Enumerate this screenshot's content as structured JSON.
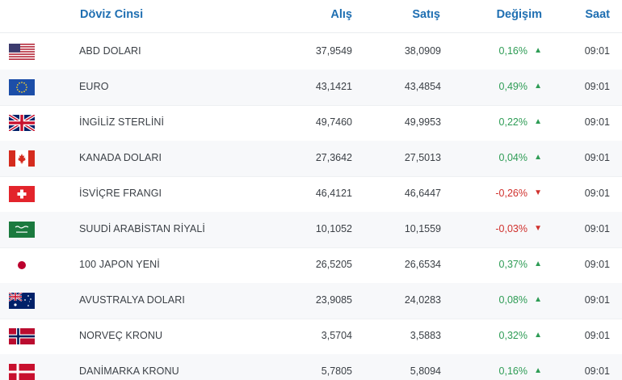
{
  "header": {
    "name": "Döviz Cinsi",
    "buy": "Alış",
    "sell": "Satış",
    "change": "Değişim",
    "time": "Saat"
  },
  "rows": [
    {
      "flag": "us-flag-icon",
      "name": "ABD DOLARI",
      "buy": "37,9549",
      "sell": "38,0909",
      "change": "0,16%",
      "dir": "up",
      "arrow": "▲",
      "time": "09:01"
    },
    {
      "flag": "eu-flag-icon",
      "name": "EURO",
      "buy": "43,1421",
      "sell": "43,4854",
      "change": "0,49%",
      "dir": "up",
      "arrow": "▲",
      "time": "09:01"
    },
    {
      "flag": "uk-flag-icon",
      "name": "İNGİLİZ STERLİNİ",
      "buy": "49,7460",
      "sell": "49,9953",
      "change": "0,22%",
      "dir": "up",
      "arrow": "▲",
      "time": "09:01"
    },
    {
      "flag": "ca-flag-icon",
      "name": "KANADA DOLARI",
      "buy": "27,3642",
      "sell": "27,5013",
      "change": "0,04%",
      "dir": "up",
      "arrow": "▲",
      "time": "09:01"
    },
    {
      "flag": "ch-flag-icon",
      "name": "İSVİÇRE FRANGI",
      "buy": "46,4121",
      "sell": "46,6447",
      "change": "-0,26%",
      "dir": "down",
      "arrow": "▼",
      "time": "09:01"
    },
    {
      "flag": "sa-flag-icon",
      "name": "SUUDİ ARABİSTAN RİYALİ",
      "buy": "10,1052",
      "sell": "10,1559",
      "change": "-0,03%",
      "dir": "down",
      "arrow": "▼",
      "time": "09:01"
    },
    {
      "flag": "jp-flag-icon",
      "name": "100 JAPON YENİ",
      "buy": "26,5205",
      "sell": "26,6534",
      "change": "0,37%",
      "dir": "up",
      "arrow": "▲",
      "time": "09:01"
    },
    {
      "flag": "au-flag-icon",
      "name": "AVUSTRALYA DOLARI",
      "buy": "23,9085",
      "sell": "24,0283",
      "change": "0,08%",
      "dir": "up",
      "arrow": "▲",
      "time": "09:01"
    },
    {
      "flag": "no-flag-icon",
      "name": "NORVEÇ KRONU",
      "buy": "3,5704",
      "sell": "3,5883",
      "change": "0,32%",
      "dir": "up",
      "arrow": "▲",
      "time": "09:01"
    },
    {
      "flag": "dk-flag-icon",
      "name": "DANİMARKA KRONU",
      "buy": "5,7805",
      "sell": "5,8094",
      "change": "0,16%",
      "dir": "up",
      "arrow": "▲",
      "time": "09:01"
    }
  ],
  "colors": {
    "header": "#1f6fb2",
    "up": "#2e9c55",
    "down": "#d0312d"
  }
}
